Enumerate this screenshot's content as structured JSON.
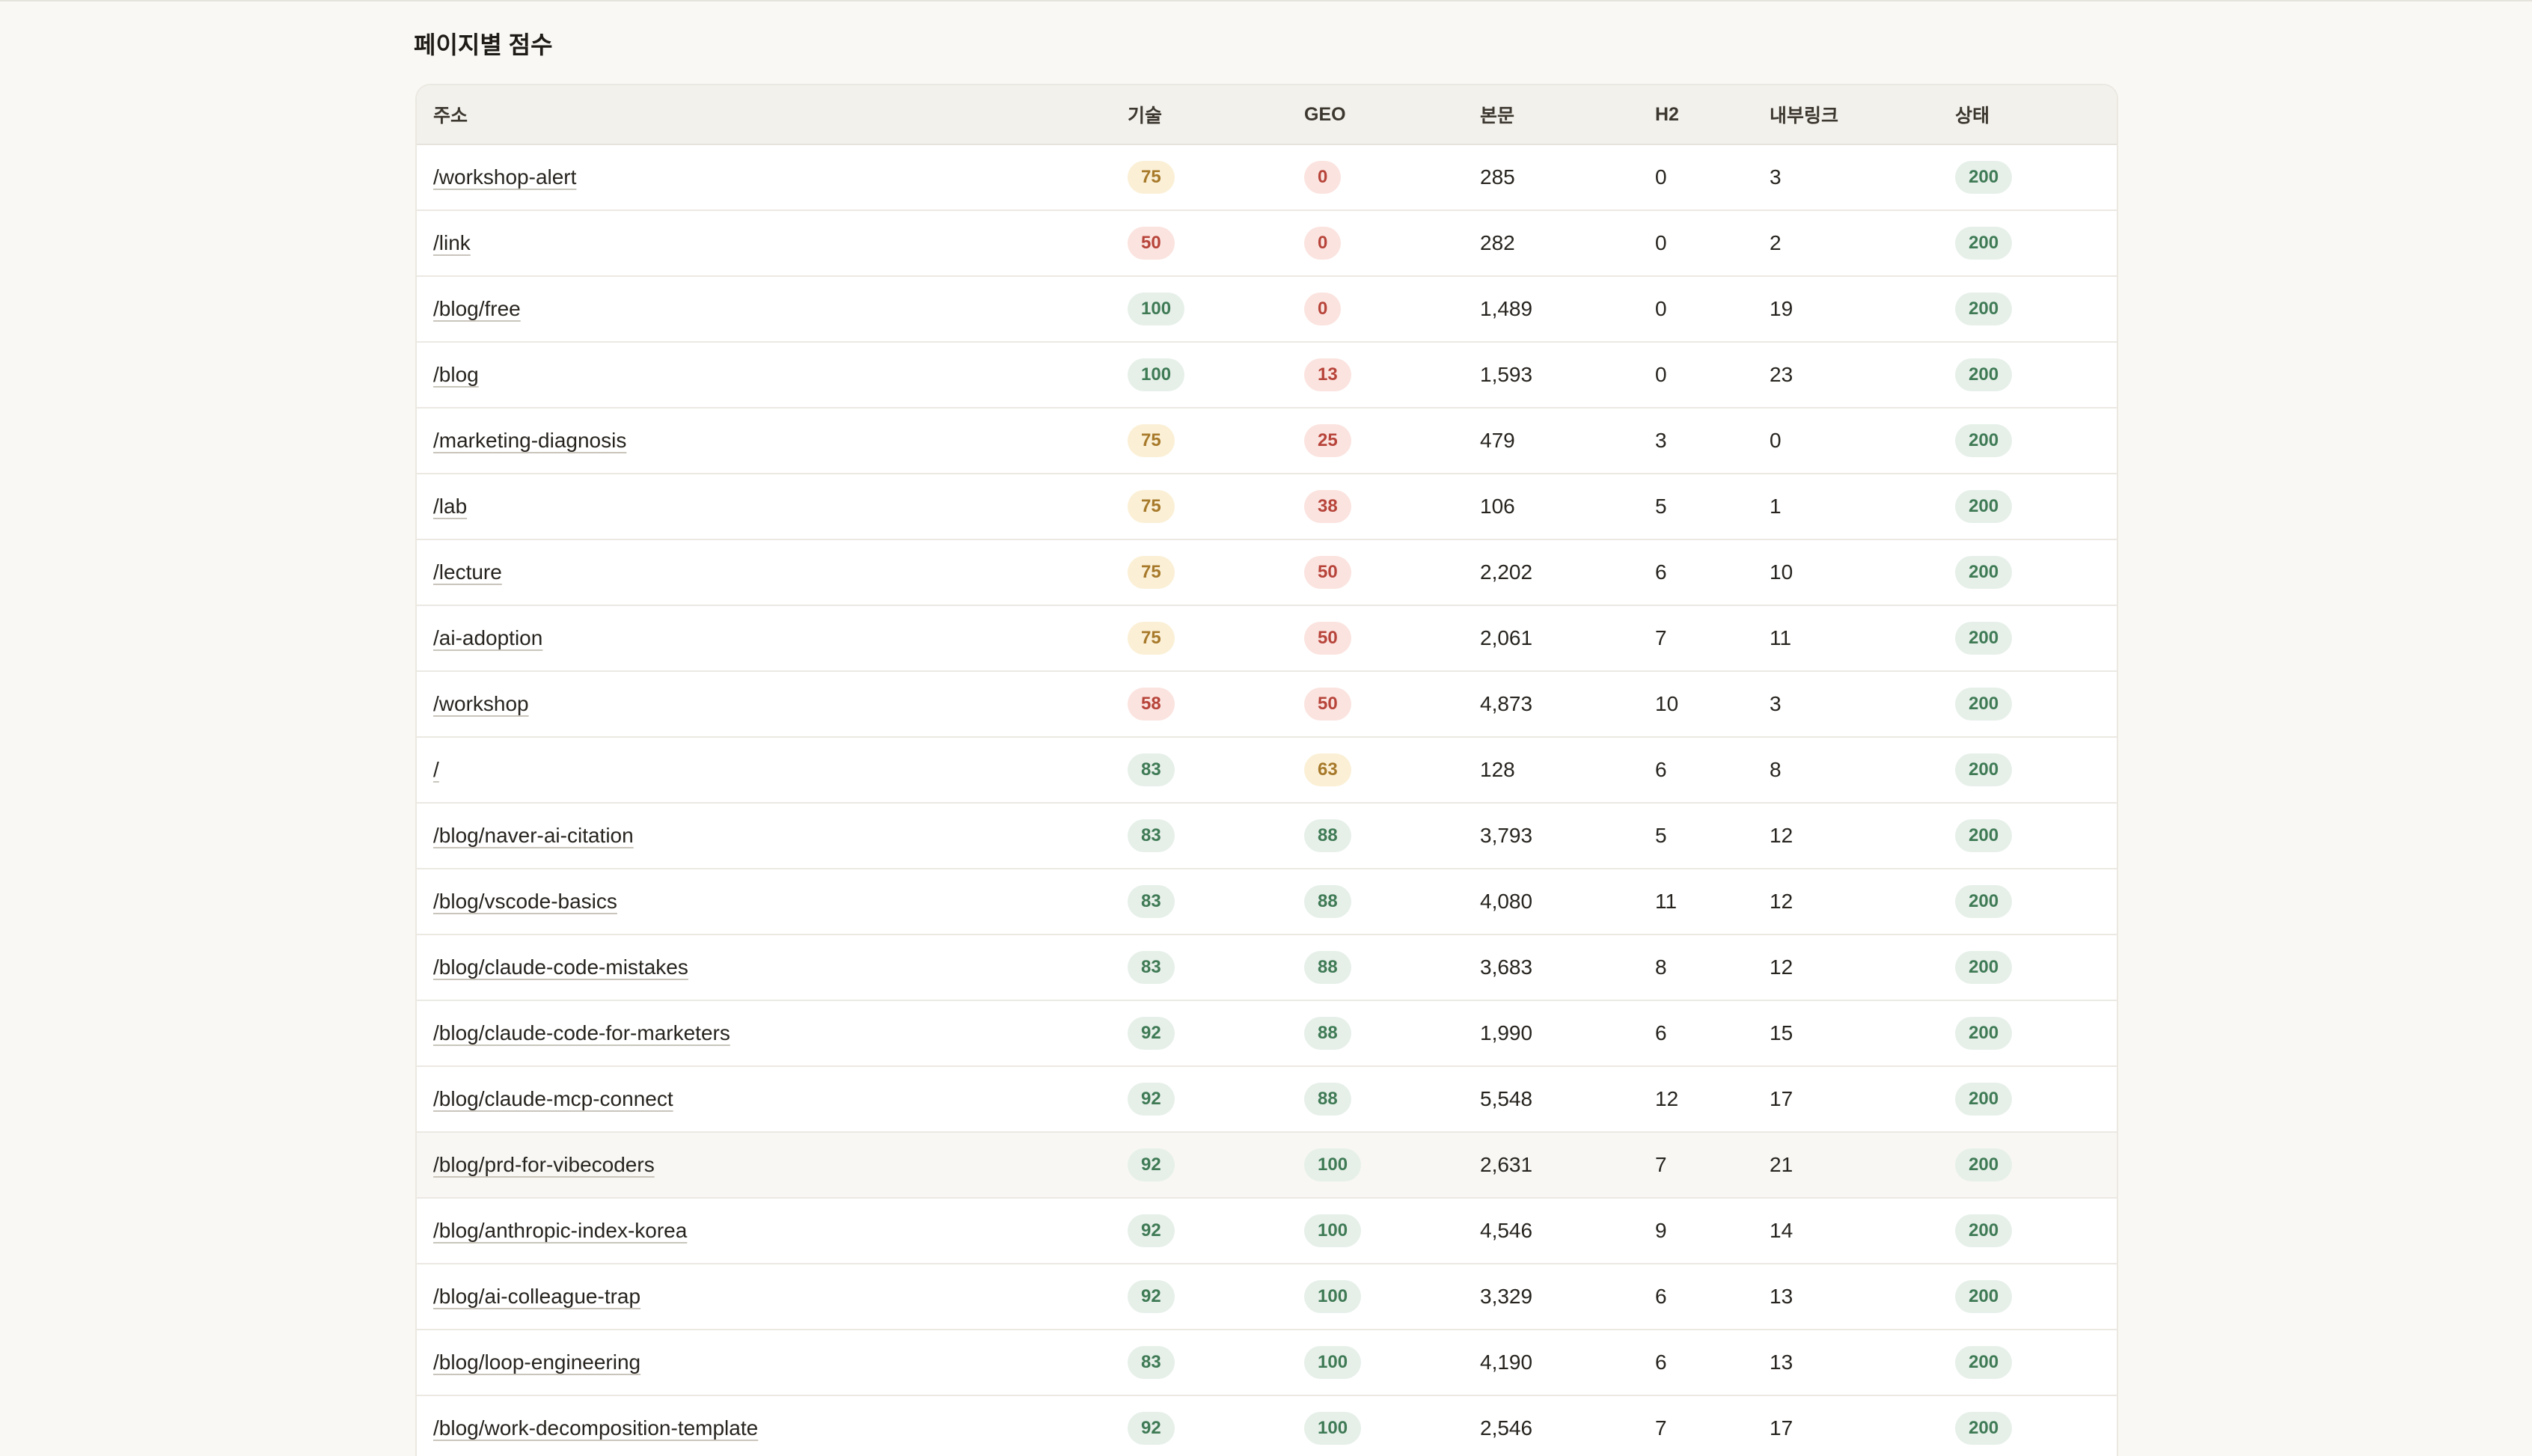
{
  "section_title": "페이지별 점수",
  "columns": {
    "url": "주소",
    "tech": "기술",
    "geo": "GEO",
    "body": "본문",
    "h2": "H2",
    "links": "내부링크",
    "state": "상태"
  },
  "status_colors": {
    "green": "#3f7a55",
    "yellow": "#a7792a",
    "red": "#b7443a"
  },
  "rows": [
    {
      "url": "/workshop-alert",
      "tech": "75",
      "tech_level": "yellow",
      "geo": "0",
      "geo_level": "red",
      "body": "285",
      "h2": "0",
      "links": "3",
      "state": "200"
    },
    {
      "url": "/link",
      "tech": "50",
      "tech_level": "red",
      "geo": "0",
      "geo_level": "red",
      "body": "282",
      "h2": "0",
      "links": "2",
      "state": "200"
    },
    {
      "url": "/blog/free",
      "tech": "100",
      "tech_level": "green",
      "geo": "0",
      "geo_level": "red",
      "body": "1,489",
      "h2": "0",
      "links": "19",
      "state": "200"
    },
    {
      "url": "/blog",
      "tech": "100",
      "tech_level": "green",
      "geo": "13",
      "geo_level": "red",
      "body": "1,593",
      "h2": "0",
      "links": "23",
      "state": "200"
    },
    {
      "url": "/marketing-diagnosis",
      "tech": "75",
      "tech_level": "yellow",
      "geo": "25",
      "geo_level": "red",
      "body": "479",
      "h2": "3",
      "links": "0",
      "state": "200"
    },
    {
      "url": "/lab",
      "tech": "75",
      "tech_level": "yellow",
      "geo": "38",
      "geo_level": "red",
      "body": "106",
      "h2": "5",
      "links": "1",
      "state": "200"
    },
    {
      "url": "/lecture",
      "tech": "75",
      "tech_level": "yellow",
      "geo": "50",
      "geo_level": "red",
      "body": "2,202",
      "h2": "6",
      "links": "10",
      "state": "200"
    },
    {
      "url": "/ai-adoption",
      "tech": "75",
      "tech_level": "yellow",
      "geo": "50",
      "geo_level": "red",
      "body": "2,061",
      "h2": "7",
      "links": "11",
      "state": "200"
    },
    {
      "url": "/workshop",
      "tech": "58",
      "tech_level": "red",
      "geo": "50",
      "geo_level": "red",
      "body": "4,873",
      "h2": "10",
      "links": "3",
      "state": "200"
    },
    {
      "url": "/",
      "tech": "83",
      "tech_level": "green",
      "geo": "63",
      "geo_level": "yellow",
      "body": "128",
      "h2": "6",
      "links": "8",
      "state": "200"
    },
    {
      "url": "/blog/naver-ai-citation",
      "tech": "83",
      "tech_level": "green",
      "geo": "88",
      "geo_level": "green",
      "body": "3,793",
      "h2": "5",
      "links": "12",
      "state": "200"
    },
    {
      "url": "/blog/vscode-basics",
      "tech": "83",
      "tech_level": "green",
      "geo": "88",
      "geo_level": "green",
      "body": "4,080",
      "h2": "11",
      "links": "12",
      "state": "200"
    },
    {
      "url": "/blog/claude-code-mistakes",
      "tech": "83",
      "tech_level": "green",
      "geo": "88",
      "geo_level": "green",
      "body": "3,683",
      "h2": "8",
      "links": "12",
      "state": "200"
    },
    {
      "url": "/blog/claude-code-for-marketers",
      "tech": "92",
      "tech_level": "green",
      "geo": "88",
      "geo_level": "green",
      "body": "1,990",
      "h2": "6",
      "links": "15",
      "state": "200"
    },
    {
      "url": "/blog/claude-mcp-connect",
      "tech": "92",
      "tech_level": "green",
      "geo": "88",
      "geo_level": "green",
      "body": "5,548",
      "h2": "12",
      "links": "17",
      "state": "200"
    },
    {
      "url": "/blog/prd-for-vibecoders",
      "tech": "92",
      "tech_level": "green",
      "geo": "100",
      "geo_level": "green",
      "body": "2,631",
      "h2": "7",
      "links": "21",
      "state": "200"
    },
    {
      "url": "/blog/anthropic-index-korea",
      "tech": "92",
      "tech_level": "green",
      "geo": "100",
      "geo_level": "green",
      "body": "4,546",
      "h2": "9",
      "links": "14",
      "state": "200"
    },
    {
      "url": "/blog/ai-colleague-trap",
      "tech": "92",
      "tech_level": "green",
      "geo": "100",
      "geo_level": "green",
      "body": "3,329",
      "h2": "6",
      "links": "13",
      "state": "200"
    },
    {
      "url": "/blog/loop-engineering",
      "tech": "83",
      "tech_level": "green",
      "geo": "100",
      "geo_level": "green",
      "body": "4,190",
      "h2": "6",
      "links": "13",
      "state": "200"
    },
    {
      "url": "/blog/work-decomposition-template",
      "tech": "92",
      "tech_level": "green",
      "geo": "100",
      "geo_level": "green",
      "body": "2,546",
      "h2": "7",
      "links": "17",
      "state": "200"
    }
  ]
}
